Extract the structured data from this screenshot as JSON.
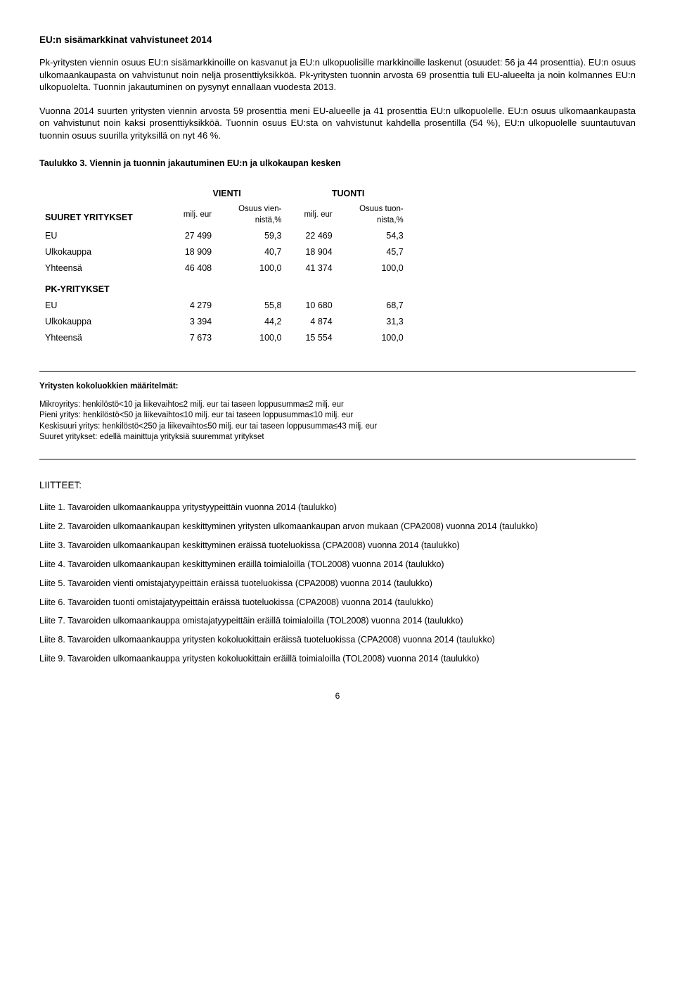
{
  "doc": {
    "heading": "EU:n sisämarkkinat vahvistuneet 2014",
    "para1": "Pk-yritysten viennin osuus EU:n sisämarkkinoille on kasvanut ja EU:n ulkopuolisille markkinoille laskenut (osuudet: 56 ja 44 prosenttia). EU:n osuus ulkomaankaupasta on vahvistunut noin neljä prosenttiyksikköä. Pk-yritysten tuonnin arvosta 69 prosenttia tuli EU-alueelta ja noin kolmannes EU:n ulkopuolelta. Tuonnin jakautuminen on pysynyt ennallaan vuodesta 2013.",
    "para2": "Vuonna 2014 suurten yritysten viennin arvosta 59 prosenttia meni EU-alueelle ja 41 prosenttia EU:n ulkopuolelle. EU:n osuus ulkomaankaupasta on vahvistunut noin kaksi prosenttiyksikköä. Tuonnin osuus EU:sta on vahvistunut kahdella prosentilla (54 %), EU:n ulkopuolelle suuntautuvan tuonnin osuus suurilla yrityksillä on nyt 46 %.",
    "tableTitle": "Taulukko 3. Viennin ja tuonnin jakautuminen EU:n ja ulkokaupan kesken",
    "table": {
      "col_vienti": "VIENTI",
      "col_tuonti": "TUONTI",
      "sub_milj": "milj. eur",
      "sub_vien": "Osuus vien-\nnistä,%",
      "sub_tuon": "Osuus tuon-\nnista,%",
      "sect_suuret": "SUURET YRITYKSET",
      "sect_pk": "PK-YRITYKSET",
      "rows_suuret": [
        {
          "label": "EU",
          "v1": "27 499",
          "v2": "59,3",
          "v3": "22 469",
          "v4": "54,3"
        },
        {
          "label": "Ulkokauppa",
          "v1": "18 909",
          "v2": "40,7",
          "v3": "18 904",
          "v4": "45,7"
        },
        {
          "label": "Yhteensä",
          "v1": "46 408",
          "v2": "100,0",
          "v3": "41 374",
          "v4": "100,0"
        }
      ],
      "rows_pk": [
        {
          "label": "EU",
          "v1": "4 279",
          "v2": "55,8",
          "v3": "10 680",
          "v4": "68,7"
        },
        {
          "label": "Ulkokauppa",
          "v1": "3 394",
          "v2": "44,2",
          "v3": "4 874",
          "v4": "31,3"
        },
        {
          "label": "Yhteensä",
          "v1": "7 673",
          "v2": "100,0",
          "v3": "15 554",
          "v4": "100,0"
        }
      ]
    },
    "defs": {
      "title": "Yritysten kokoluokkien määritelmät:",
      "lines": [
        "Mikroyritys: henkilöstö<10 ja liikevaihto≤2 milj. eur tai taseen loppusumma≤2 milj. eur",
        "Pieni yritys: henkilöstö<50 ja liikevaihto≤10 milj. eur tai taseen loppusumma≤10 milj. eur",
        "Keskisuuri yritys: henkilöstö<250 ja liikevaihto≤50 milj. eur tai taseen loppusumma≤43 milj. eur",
        "Suuret yritykset: edellä mainittuja yrityksiä suuremmat yritykset"
      ]
    },
    "liitteet": {
      "title": "LIITTEET:",
      "items": [
        "Liite 1. Tavaroiden ulkomaankauppa yritystyypeittäin vuonna 2014 (taulukko)",
        "Liite 2. Tavaroiden ulkomaankaupan keskittyminen yritysten ulkomaankaupan arvon mukaan (CPA2008) vuonna 2014 (taulukko)",
        "Liite 3. Tavaroiden ulkomaankaupan keskittyminen eräissä tuoteluokissa (CPA2008) vuonna 2014 (taulukko)",
        "Liite 4. Tavaroiden ulkomaankaupan keskittyminen eräillä toimialoilla (TOL2008) vuonna 2014 (taulukko)",
        "Liite 5. Tavaroiden vienti omistajatyypeittäin eräissä tuoteluokissa (CPA2008) vuonna 2014 (taulukko)",
        "Liite 6. Tavaroiden tuonti omistajatyypeittäin eräissä tuoteluokissa (CPA2008) vuonna 2014 (taulukko)",
        "Liite 7. Tavaroiden ulkomaankauppa omistajatyypeittäin eräillä toimialoilla (TOL2008) vuonna 2014 (taulukko)",
        "Liite 8. Tavaroiden ulkomaankauppa yritysten kokoluokittain eräissä tuoteluokissa (CPA2008) vuonna 2014 (taulukko)",
        "Liite 9. Tavaroiden ulkomaankauppa yritysten kokoluokittain eräillä toimialoilla (TOL2008) vuonna 2014 (taulukko)"
      ]
    },
    "pageNum": "6"
  }
}
